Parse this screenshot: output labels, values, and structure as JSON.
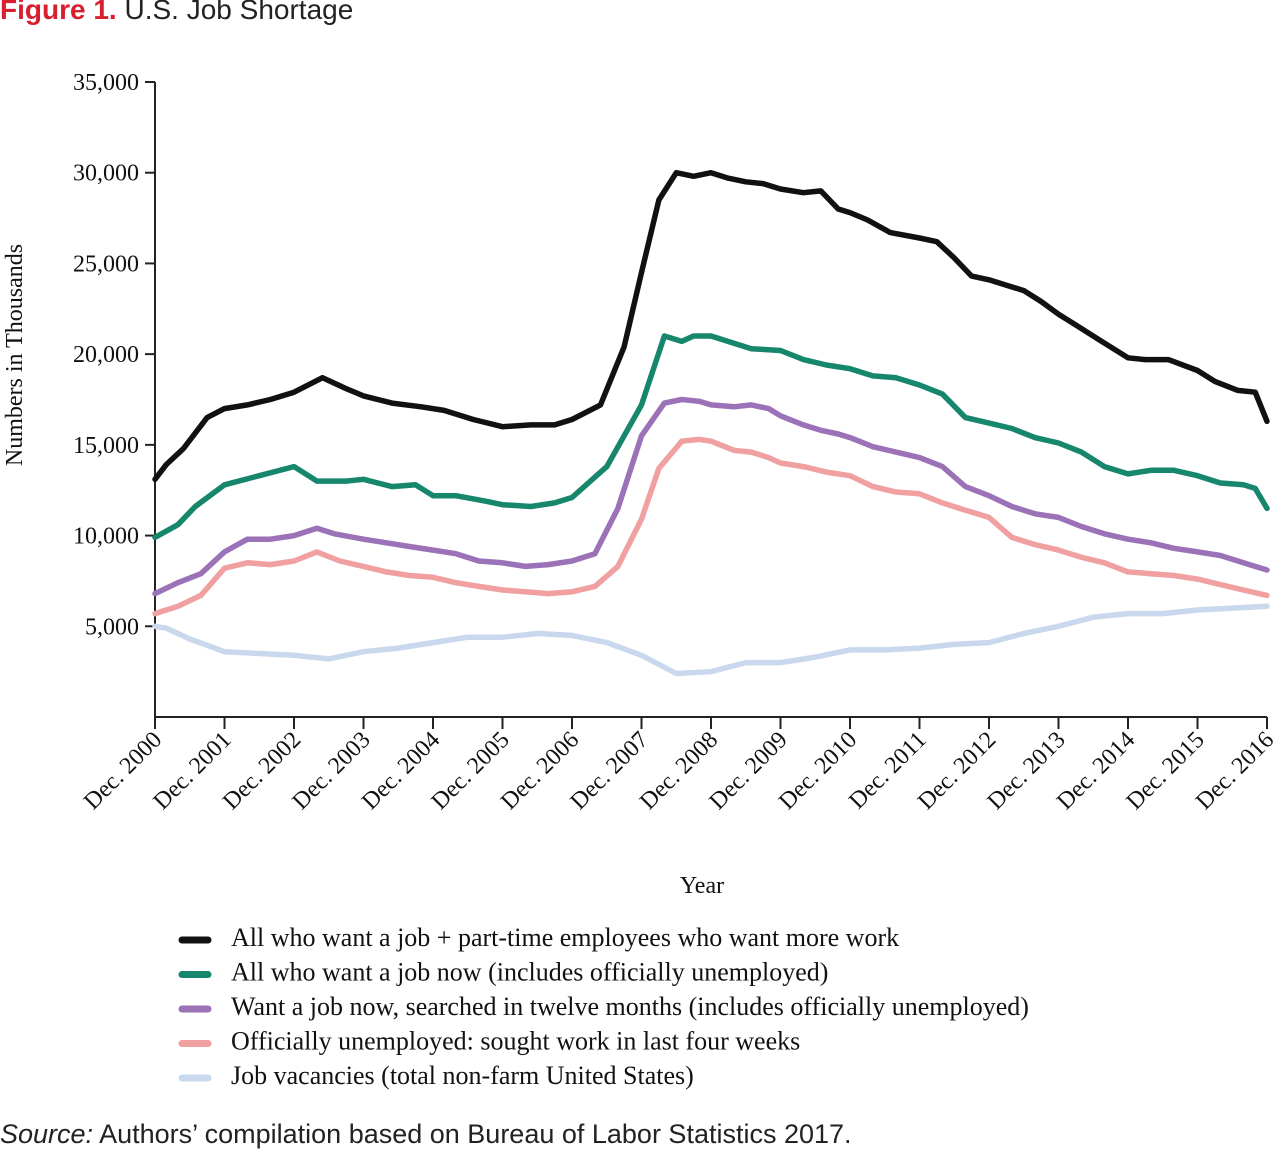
{
  "figure": {
    "label": "Figure 1.",
    "title": "U.S. Job Shortage",
    "source_label": "Source:",
    "source_text": " Authors’ compilation based on Bureau of Labor Statistics 2017."
  },
  "chart_data": {
    "type": "line",
    "xlabel": "Year",
    "ylabel": "Numbers in Thousands",
    "xlim": [
      2000.92,
      2016.92
    ],
    "ylim": [
      0,
      35000
    ],
    "yticks": [
      5000,
      10000,
      15000,
      20000,
      25000,
      30000,
      35000
    ],
    "ytick_labels": [
      "5,000",
      "10,000",
      "15,000",
      "20,000",
      "25,000",
      "30,000",
      "35,000"
    ],
    "xticks": [
      2000.92,
      2001.92,
      2002.92,
      2003.92,
      2004.92,
      2005.92,
      2006.92,
      2007.92,
      2008.92,
      2009.92,
      2010.92,
      2011.92,
      2012.92,
      2013.92,
      2014.92,
      2015.92,
      2016.92
    ],
    "xtick_labels": [
      "Dec. 2000",
      "Dec. 2001",
      "Dec. 2002",
      "Dec. 2003",
      "Dec. 2004",
      "Dec. 2005",
      "Dec. 2006",
      "Dec. 2007",
      "Dec. 2008",
      "Dec. 2009",
      "Dec. 2010",
      "Dec. 2011",
      "Dec. 2012",
      "Dec. 2013",
      "Dec. 2014",
      "Dec. 2015",
      "Dec. 2016"
    ],
    "grid": false,
    "legend_position": "bottom",
    "series": [
      {
        "name": "All who want a job + part-time employees who want more work",
        "color": "#111111",
        "x": [
          2000.92,
          2001.08,
          2001.33,
          2001.67,
          2001.92,
          2002.25,
          2002.58,
          2002.92,
          2003.33,
          2003.67,
          2003.92,
          2004.33,
          2004.75,
          2005.08,
          2005.5,
          2005.92,
          2006.33,
          2006.67,
          2006.92,
          2007.33,
          2007.67,
          2007.92,
          2008.17,
          2008.42,
          2008.67,
          2008.92,
          2009.17,
          2009.42,
          2009.67,
          2009.92,
          2010.25,
          2010.5,
          2010.75,
          2010.92,
          2011.17,
          2011.5,
          2011.92,
          2012.17,
          2012.42,
          2012.67,
          2012.92,
          2013.17,
          2013.42,
          2013.67,
          2013.92,
          2014.17,
          2014.5,
          2014.92,
          2015.17,
          2015.5,
          2015.92,
          2016.17,
          2016.5,
          2016.75,
          2016.92
        ],
        "values": [
          13100,
          13900,
          14800,
          16500,
          17000,
          17200,
          17500,
          17900,
          18700,
          18100,
          17700,
          17300,
          17100,
          16900,
          16400,
          16000,
          16100,
          16100,
          16400,
          17200,
          20400,
          24500,
          28500,
          30000,
          29800,
          30000,
          29700,
          29500,
          29400,
          29100,
          28900,
          29000,
          28000,
          27800,
          27400,
          26700,
          26400,
          26200,
          25300,
          24300,
          24100,
          23800,
          23500,
          22900,
          22200,
          21600,
          20800,
          19800,
          19700,
          19700,
          19100,
          18500,
          18000,
          17900,
          16300
        ]
      },
      {
        "name": "All who want a job now (includes officially unemployed)",
        "color": "#16866d",
        "x": [
          2000.92,
          2001.25,
          2001.5,
          2001.92,
          2002.42,
          2002.92,
          2003.25,
          2003.67,
          2003.92,
          2004.33,
          2004.67,
          2004.92,
          2005.25,
          2005.67,
          2005.92,
          2006.33,
          2006.67,
          2006.92,
          2007.42,
          2007.92,
          2008.25,
          2008.5,
          2008.67,
          2008.92,
          2009.25,
          2009.5,
          2009.92,
          2010.25,
          2010.58,
          2010.92,
          2011.25,
          2011.58,
          2011.92,
          2012.25,
          2012.58,
          2012.92,
          2013.25,
          2013.58,
          2013.92,
          2014.25,
          2014.58,
          2014.92,
          2015.25,
          2015.58,
          2015.92,
          2016.25,
          2016.58,
          2016.75,
          2016.92
        ],
        "values": [
          9900,
          10600,
          11600,
          12800,
          13300,
          13800,
          13000,
          13000,
          13100,
          12700,
          12800,
          12200,
          12200,
          11900,
          11700,
          11600,
          11800,
          12100,
          13800,
          17200,
          21000,
          20700,
          21000,
          21000,
          20600,
          20300,
          20200,
          19700,
          19400,
          19200,
          18800,
          18700,
          18300,
          17800,
          16500,
          16200,
          15900,
          15400,
          15100,
          14600,
          13800,
          13400,
          13600,
          13600,
          13300,
          12900,
          12800,
          12600,
          11500
        ]
      },
      {
        "name": "Want a job now, searched in twelve months (includes officially unemployed)",
        "color": "#9b72b8",
        "x": [
          2000.92,
          2001.25,
          2001.58,
          2001.92,
          2002.25,
          2002.58,
          2002.92,
          2003.25,
          2003.5,
          2003.92,
          2004.25,
          2004.58,
          2004.92,
          2005.25,
          2005.58,
          2005.92,
          2006.25,
          2006.58,
          2006.92,
          2007.25,
          2007.58,
          2007.92,
          2008.25,
          2008.5,
          2008.75,
          2008.92,
          2009.25,
          2009.5,
          2009.75,
          2009.92,
          2010.25,
          2010.5,
          2010.75,
          2010.92,
          2011.25,
          2011.58,
          2011.92,
          2012.25,
          2012.58,
          2012.92,
          2013.25,
          2013.58,
          2013.92,
          2014.25,
          2014.58,
          2014.92,
          2015.25,
          2015.58,
          2015.92,
          2016.25,
          2016.58,
          2016.92
        ],
        "values": [
          6800,
          7400,
          7900,
          9100,
          9800,
          9800,
          10000,
          10400,
          10100,
          9800,
          9600,
          9400,
          9200,
          9000,
          8600,
          8500,
          8300,
          8400,
          8600,
          9000,
          11500,
          15500,
          17300,
          17500,
          17400,
          17200,
          17100,
          17200,
          17000,
          16600,
          16100,
          15800,
          15600,
          15400,
          14900,
          14600,
          14300,
          13800,
          12700,
          12200,
          11600,
          11200,
          11000,
          10500,
          10100,
          9800,
          9600,
          9300,
          9100,
          8900,
          8500,
          8100
        ]
      },
      {
        "name": "Officially unemployed: sought work in last four weeks",
        "color": "#f0a0a0",
        "x": [
          2000.92,
          2001.25,
          2001.58,
          2001.92,
          2002.25,
          2002.58,
          2002.92,
          2003.25,
          2003.58,
          2003.92,
          2004.25,
          2004.58,
          2004.92,
          2005.25,
          2005.58,
          2005.92,
          2006.25,
          2006.58,
          2006.92,
          2007.25,
          2007.58,
          2007.92,
          2008.17,
          2008.5,
          2008.75,
          2008.92,
          2009.25,
          2009.5,
          2009.75,
          2009.92,
          2010.25,
          2010.58,
          2010.92,
          2011.25,
          2011.58,
          2011.92,
          2012.25,
          2012.58,
          2012.92,
          2013.25,
          2013.58,
          2013.92,
          2014.25,
          2014.58,
          2014.92,
          2015.25,
          2015.58,
          2015.92,
          2016.25,
          2016.58,
          2016.92
        ],
        "values": [
          5700,
          6100,
          6700,
          8200,
          8500,
          8400,
          8600,
          9100,
          8600,
          8300,
          8000,
          7800,
          7700,
          7400,
          7200,
          7000,
          6900,
          6800,
          6900,
          7200,
          8300,
          10900,
          13700,
          15200,
          15300,
          15200,
          14700,
          14600,
          14300,
          14000,
          13800,
          13500,
          13300,
          12700,
          12400,
          12300,
          11800,
          11400,
          11000,
          9900,
          9500,
          9200,
          8800,
          8500,
          8000,
          7900,
          7800,
          7600,
          7300,
          7000,
          6700
        ]
      },
      {
        "name": "Job vacancies (total non-farm United States)",
        "color": "#c9d8ed",
        "x": [
          2000.92,
          2001.08,
          2001.42,
          2001.92,
          2002.42,
          2002.92,
          2003.42,
          2003.92,
          2004.42,
          2004.92,
          2005.42,
          2005.92,
          2006.42,
          2006.92,
          2007.42,
          2007.92,
          2008.42,
          2008.92,
          2009.42,
          2009.92,
          2010.42,
          2010.92,
          2011.42,
          2011.92,
          2012.42,
          2012.92,
          2013.42,
          2013.92,
          2014.42,
          2014.92,
          2015.42,
          2015.92,
          2016.42,
          2016.92
        ],
        "values": [
          5000,
          4900,
          4300,
          3600,
          3500,
          3400,
          3200,
          3600,
          3800,
          4100,
          4400,
          4400,
          4600,
          4500,
          4100,
          3400,
          2400,
          2500,
          3000,
          3000,
          3300,
          3700,
          3700,
          3800,
          4000,
          4100,
          4600,
          5000,
          5500,
          5700,
          5700,
          5900,
          6000,
          6100
        ]
      }
    ]
  }
}
